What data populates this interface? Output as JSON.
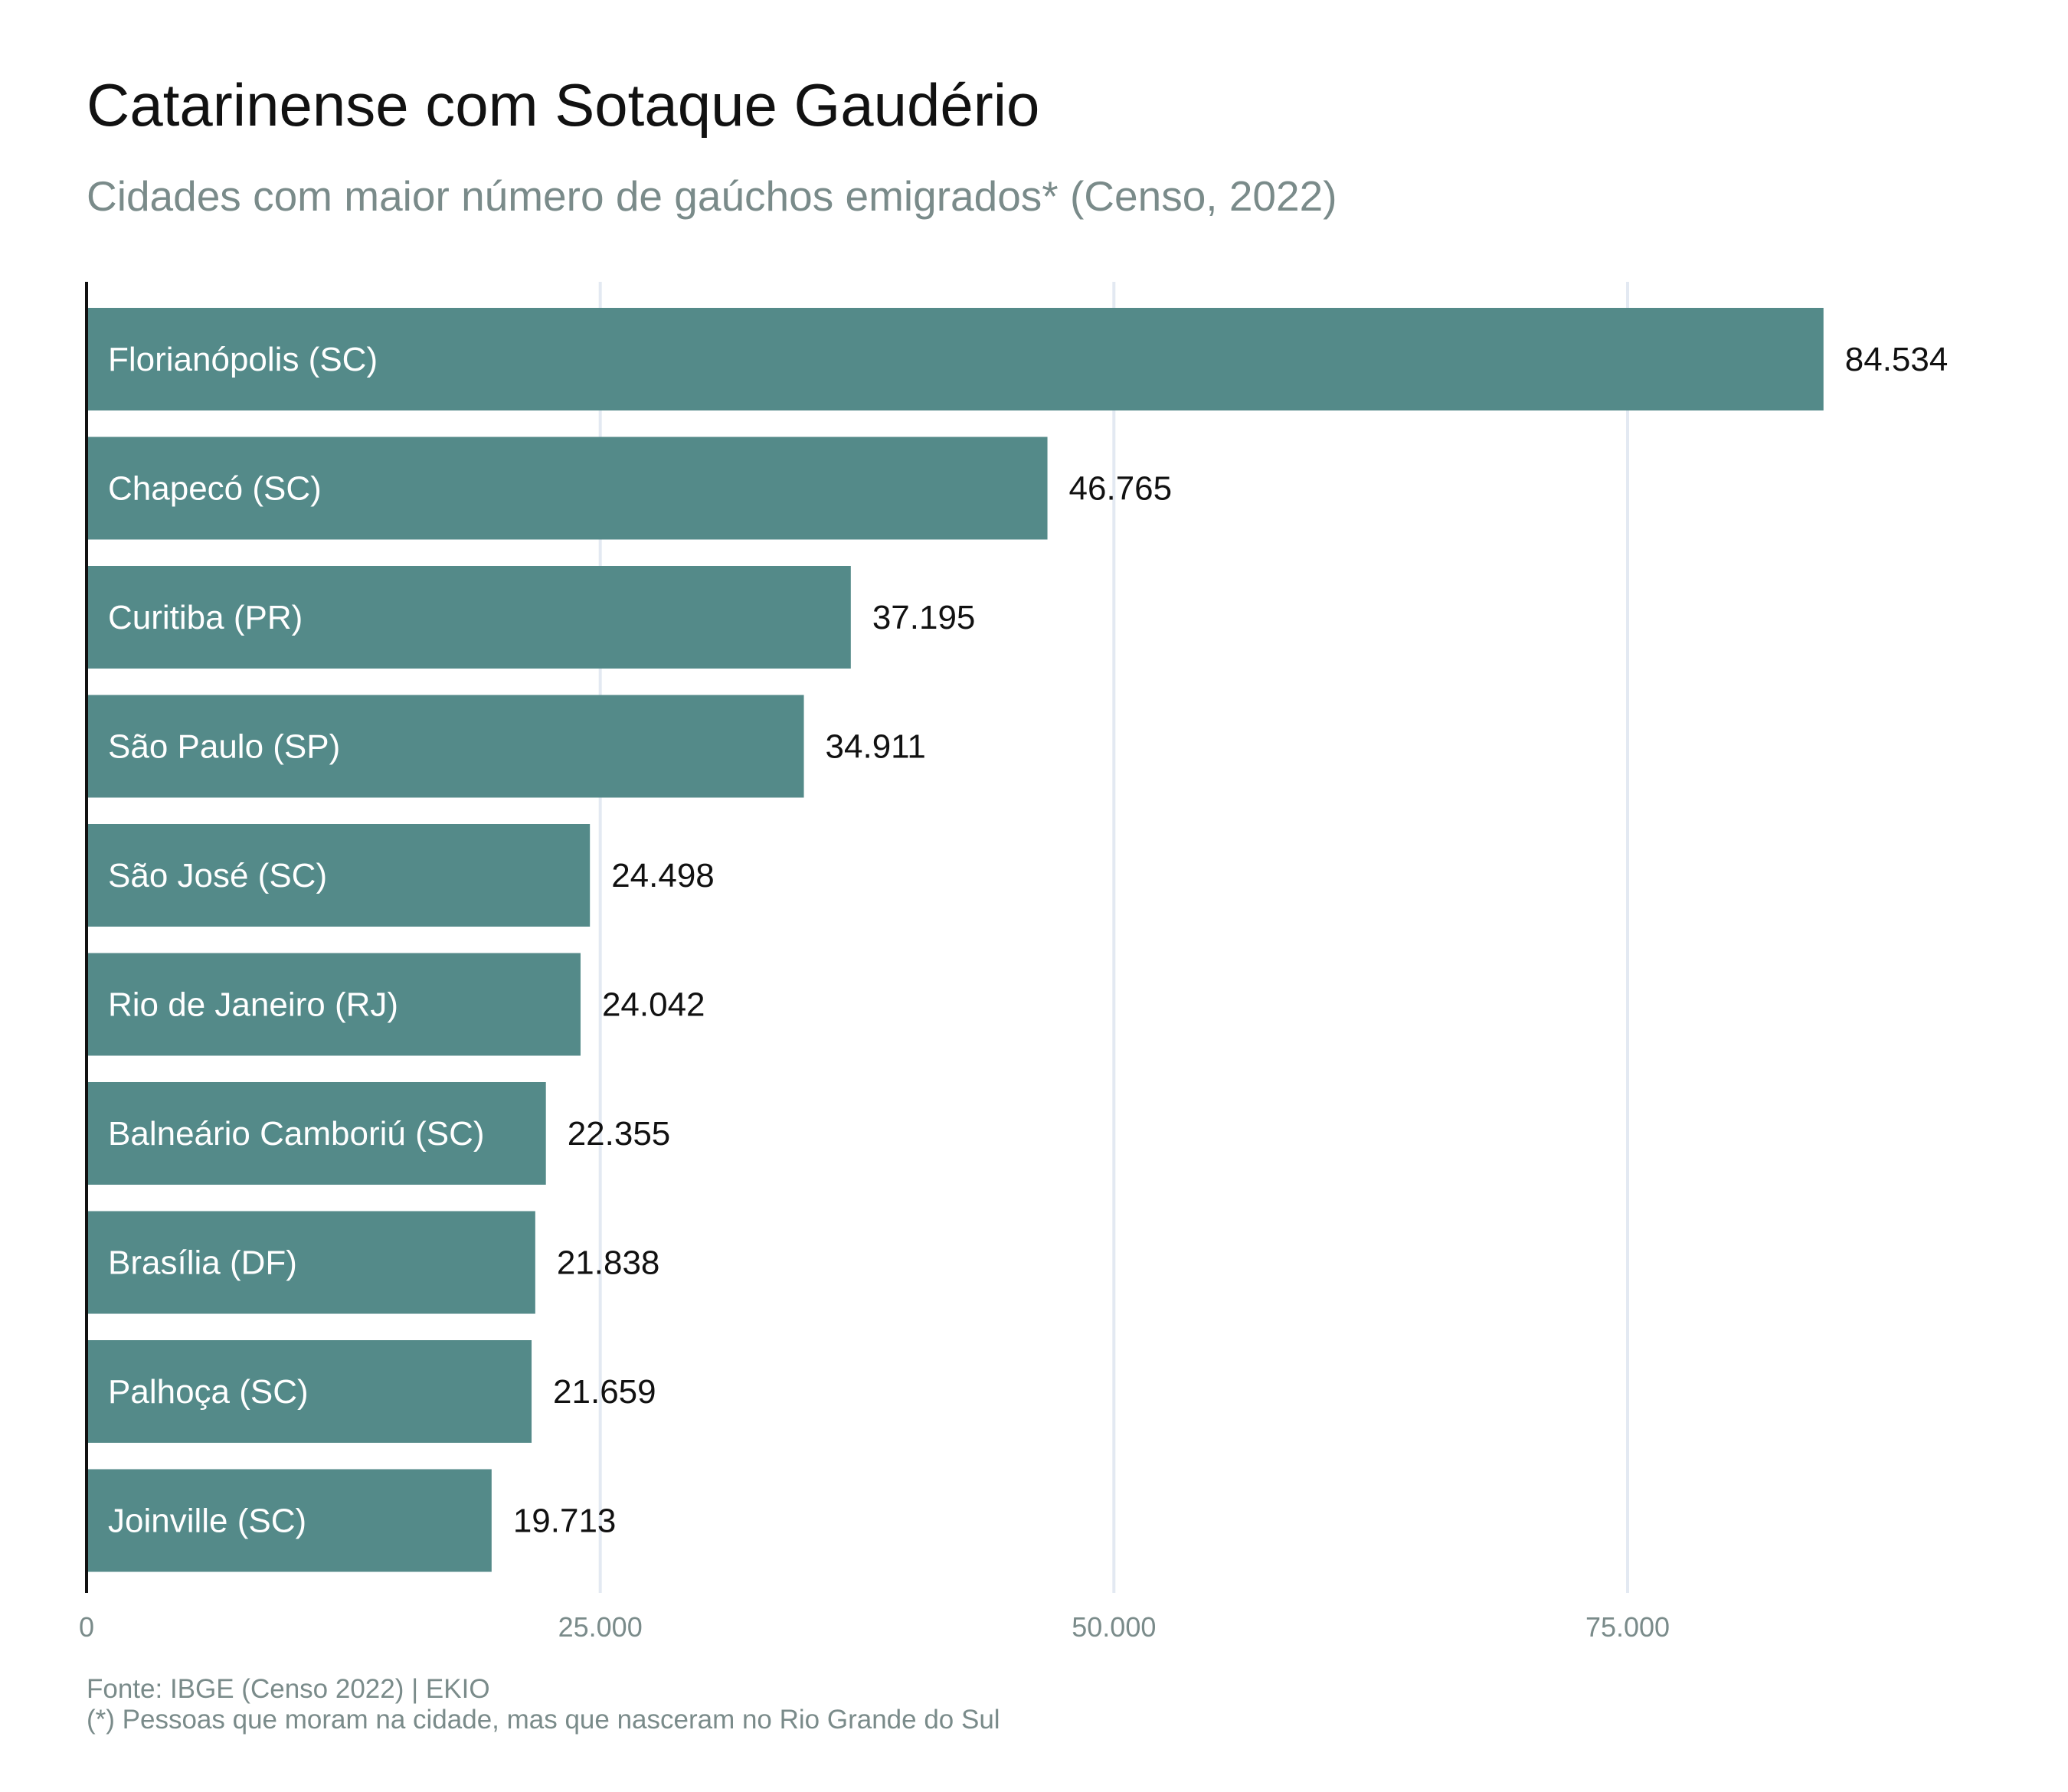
{
  "chart_data": {
    "type": "bar",
    "orientation": "horizontal",
    "title": "Catarinense com Sotaque Gaudério",
    "subtitle": "Cidades com maior número de gaúchos emigrados* (Censo, 2022)",
    "categories": [
      "Florianópolis (SC)",
      "Chapecó (SC)",
      "Curitiba (PR)",
      "São Paulo (SP)",
      "São José (SC)",
      "Rio de Janeiro (RJ)",
      "Balneário Camboriú (SC)",
      "Brasília (DF)",
      "Palhoça (SC)",
      "Joinville (SC)"
    ],
    "values": [
      84534,
      46765,
      37195,
      34911,
      24498,
      24042,
      22355,
      21838,
      21659,
      19713
    ],
    "value_labels": [
      "84.534",
      "46.765",
      "37.195",
      "34.911",
      "24.498",
      "24.042",
      "22.355",
      "21.838",
      "21.659",
      "19.713"
    ],
    "x_ticks": [
      0,
      25000,
      50000,
      75000
    ],
    "x_tick_labels": [
      "0",
      "25.000",
      "50.000",
      "75.000"
    ],
    "xlim": [
      0,
      85000
    ],
    "grid": "vertical",
    "legend": "none",
    "caption": [
      "Fonte: IBGE (Censo 2022) | EKIO",
      "(*) Pessoas que moram na cidade, mas que nasceram no Rio Grande do Sul"
    ]
  },
  "colors": {
    "bar": "#548a89",
    "bar_label": "#ffffff",
    "value_label": "#111111",
    "grid": "#e3e9f2",
    "axis": "#111111",
    "tick_label": "#7a8b8a",
    "subtitle": "#7a8b8a"
  }
}
